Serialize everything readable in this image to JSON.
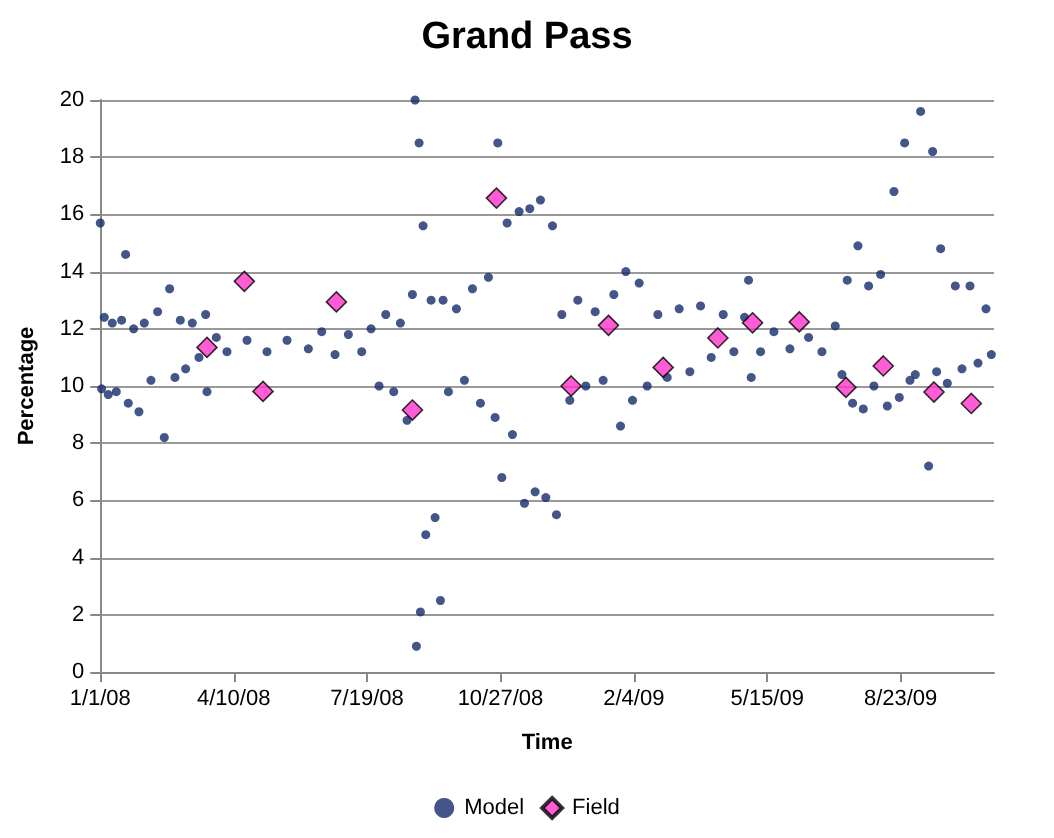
{
  "chart_data": {
    "type": "scatter",
    "title": "Grand Pass",
    "xlabel": "Time",
    "ylabel": "Percentage",
    "xlim": [
      "2008-01-01",
      "2009-11-01"
    ],
    "xticks": [
      {
        "value": "2008-01-01",
        "label": "1/1/08"
      },
      {
        "value": "2008-04-10",
        "label": "4/10/08"
      },
      {
        "value": "2008-07-19",
        "label": "7/19/08"
      },
      {
        "value": "2008-10-27",
        "label": "10/27/08"
      },
      {
        "value": "2009-02-04",
        "label": "2/4/09"
      },
      {
        "value": "2009-05-15",
        "label": "5/15/09"
      },
      {
        "value": "2009-08-23",
        "label": "8/23/09"
      }
    ],
    "ylim": [
      0,
      20
    ],
    "yticks": [
      0,
      2,
      4,
      6,
      8,
      10,
      12,
      14,
      16,
      18,
      20
    ],
    "grid": "y",
    "legend": "bottom",
    "series": [
      {
        "name": "Model",
        "color": "#142a6b",
        "marker": "circle",
        "x": [
          "2008-01-01",
          "2008-01-02",
          "2008-01-04",
          "2008-01-07",
          "2008-01-10",
          "2008-01-13",
          "2008-01-17",
          "2008-01-20",
          "2008-01-22",
          "2008-01-26",
          "2008-01-30",
          "2008-02-03",
          "2008-02-08",
          "2008-02-13",
          "2008-02-18",
          "2008-02-22",
          "2008-02-26",
          "2008-03-01",
          "2008-03-05",
          "2008-03-10",
          "2008-03-15",
          "2008-03-20",
          "2008-03-21",
          "2008-03-28",
          "2008-04-05",
          "2008-04-20",
          "2008-05-05",
          "2008-05-20",
          "2008-06-05",
          "2008-06-15",
          "2008-06-25",
          "2008-07-05",
          "2008-07-15",
          "2008-07-22",
          "2008-07-28",
          "2008-08-02",
          "2008-08-08",
          "2008-08-13",
          "2008-08-18",
          "2008-08-22",
          "2008-08-24",
          "2008-08-25",
          "2008-08-27",
          "2008-08-28",
          "2008-08-30",
          "2008-09-01",
          "2008-09-05",
          "2008-09-08",
          "2008-09-12",
          "2008-09-14",
          "2008-09-18",
          "2008-09-24",
          "2008-09-30",
          "2008-10-06",
          "2008-10-12",
          "2008-10-18",
          "2008-10-23",
          "2008-10-25",
          "2008-10-28",
          "2008-11-01",
          "2008-11-05",
          "2008-11-10",
          "2008-11-14",
          "2008-11-18",
          "2008-11-22",
          "2008-11-26",
          "2008-11-30",
          "2008-12-05",
          "2008-12-08",
          "2008-12-12",
          "2008-12-18",
          "2008-12-24",
          "2008-12-30",
          "2009-01-06",
          "2009-01-12",
          "2009-01-20",
          "2009-01-25",
          "2009-01-29",
          "2009-02-03",
          "2009-02-08",
          "2009-02-14",
          "2009-02-22",
          "2009-03-01",
          "2009-03-10",
          "2009-03-18",
          "2009-03-26",
          "2009-04-03",
          "2009-04-12",
          "2009-04-20",
          "2009-04-28",
          "2009-05-01",
          "2009-05-03",
          "2009-05-10",
          "2009-05-20",
          "2009-06-01",
          "2009-06-15",
          "2009-06-25",
          "2009-07-05",
          "2009-07-10",
          "2009-07-14",
          "2009-07-18",
          "2009-07-22",
          "2009-07-26",
          "2009-07-30",
          "2009-08-03",
          "2009-08-08",
          "2009-08-13",
          "2009-08-18",
          "2009-08-22",
          "2009-08-26",
          "2009-08-30",
          "2009-09-03",
          "2009-09-07",
          "2009-09-13",
          "2009-09-16",
          "2009-09-19",
          "2009-09-22",
          "2009-09-27",
          "2009-10-03",
          "2009-10-08",
          "2009-10-14",
          "2009-10-20",
          "2009-10-26",
          "2009-10-30"
        ],
        "values": [
          15.7,
          9.9,
          12.4,
          9.7,
          12.2,
          9.8,
          12.3,
          14.6,
          9.4,
          12.0,
          9.1,
          12.2,
          10.2,
          12.6,
          8.2,
          13.4,
          10.3,
          12.3,
          10.6,
          12.2,
          11.0,
          12.5,
          9.8,
          11.7,
          11.2,
          11.6,
          11.2,
          11.6,
          11.3,
          11.9,
          11.1,
          11.8,
          11.2,
          12.0,
          10.0,
          12.5,
          9.8,
          12.2,
          8.8,
          13.2,
          20.0,
          0.9,
          18.5,
          2.1,
          15.6,
          4.8,
          13.0,
          5.4,
          2.5,
          13.0,
          9.8,
          12.7,
          10.2,
          13.4,
          9.4,
          13.8,
          8.9,
          18.5,
          6.8,
          15.7,
          8.3,
          16.1,
          5.9,
          16.2,
          6.3,
          16.5,
          6.1,
          15.6,
          5.5,
          12.5,
          9.5,
          13.0,
          10.0,
          12.6,
          10.2,
          13.2,
          8.6,
          14.0,
          9.5,
          13.6,
          10.0,
          12.5,
          10.3,
          12.7,
          10.5,
          12.8,
          11.0,
          12.5,
          11.2,
          12.4,
          13.7,
          10.3,
          11.2,
          11.9,
          11.3,
          11.7,
          11.2,
          12.1,
          10.4,
          13.7,
          9.4,
          14.9,
          9.2,
          13.5,
          10.0,
          13.9,
          9.3,
          16.8,
          9.6,
          18.5,
          10.2,
          10.4,
          19.6,
          7.2,
          18.2,
          10.5,
          14.8,
          10.1,
          13.5,
          10.6,
          13.5,
          10.8,
          12.7,
          11.1
        ]
      },
      {
        "name": "Field",
        "color": "#ff33cc",
        "marker": "diamond",
        "x": [
          "2008-03-21",
          "2008-04-18",
          "2008-05-02",
          "2008-06-26",
          "2008-08-22",
          "2008-10-24",
          "2008-12-19",
          "2009-01-16",
          "2009-02-26",
          "2009-04-08",
          "2009-05-04",
          "2009-06-08",
          "2009-07-13",
          "2009-08-10",
          "2009-09-17",
          "2009-10-15"
        ],
        "values": [
          11.35,
          13.66,
          9.81,
          12.94,
          9.16,
          16.57,
          10.0,
          12.12,
          10.65,
          11.68,
          12.21,
          12.24,
          9.95,
          10.7,
          9.79,
          9.39
        ]
      }
    ]
  }
}
